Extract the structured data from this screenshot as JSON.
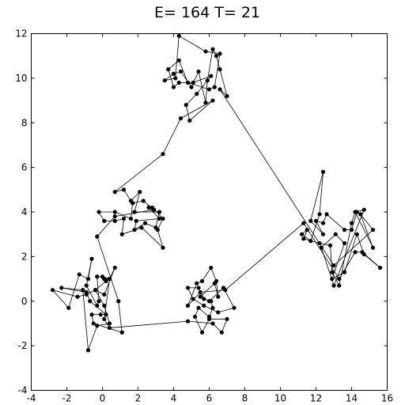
{
  "chart_data": {
    "type": "scatter",
    "title": "E= 164 T= 21",
    "xlabel": "",
    "ylabel": "",
    "xlim": [
      -4,
      16
    ],
    "ylim": [
      -4,
      12
    ],
    "xticks": [
      -4,
      -2,
      0,
      2,
      4,
      6,
      8,
      10,
      12,
      14,
      16
    ],
    "yticks": [
      -4,
      -2,
      0,
      2,
      4,
      6,
      8,
      10,
      12
    ],
    "grid": false,
    "connected": true,
    "closed": true,
    "point_color": "#000000",
    "line_color": "#000000",
    "tour": [
      [
        1.1,
        -1.4
      ],
      [
        -0.5,
        -1.0
      ],
      [
        -0.6,
        -0.6
      ],
      [
        -0.1,
        -0.6
      ],
      [
        0.2,
        -0.6
      ],
      [
        -0.7,
        0.0
      ],
      [
        -0.9,
        0.4
      ],
      [
        -2.3,
        0.6
      ],
      [
        -1.1,
        0.5
      ],
      [
        -0.8,
        -2.2
      ],
      [
        -0.3,
        -1.1
      ],
      [
        0.4,
        -1.0
      ],
      [
        0.1,
        -0.2
      ],
      [
        -0.4,
        0.5
      ],
      [
        -0.9,
        0.3
      ],
      [
        -1.4,
        0.2
      ],
      [
        -2.8,
        0.5
      ],
      [
        -1.9,
        -0.3
      ],
      [
        -1.3,
        1.2
      ],
      [
        -0.8,
        1.0
      ],
      [
        -0.6,
        1.9
      ],
      [
        -0.9,
        0.7
      ],
      [
        -0.3,
        -0.2
      ],
      [
        -0.2,
        0.0
      ],
      [
        -0.3,
        1.1
      ],
      [
        0.0,
        1.1
      ],
      [
        0.4,
        1.0
      ],
      [
        0.7,
        1.5
      ],
      [
        0.1,
        0.3
      ],
      [
        -0.4,
        0.5
      ],
      [
        0.2,
        0.9
      ],
      [
        0.1,
        1.0
      ],
      [
        0.4,
        1.0
      ],
      [
        0.1,
        -0.8
      ],
      [
        0.4,
        -1.2
      ],
      [
        4.8,
        -0.9
      ],
      [
        6.2,
        -1.0
      ],
      [
        6.7,
        -1.4
      ],
      [
        7.0,
        -0.8
      ],
      [
        6.0,
        -0.8
      ],
      [
        5.6,
        -1.4
      ],
      [
        5.2,
        -0.7
      ],
      [
        5.4,
        -0.3
      ],
      [
        6.0,
        -0.7
      ],
      [
        6.2,
        -0.3
      ],
      [
        6.1,
        0.0
      ],
      [
        5.7,
        0.1
      ],
      [
        5.4,
        0.6
      ],
      [
        4.8,
        0.6
      ],
      [
        5.1,
        0.1
      ],
      [
        5.7,
        -0.2
      ],
      [
        6.5,
        -0.5
      ],
      [
        7.4,
        -0.3
      ],
      [
        6.8,
        0.6
      ],
      [
        6.0,
        0.0
      ],
      [
        5.5,
        0.2
      ],
      [
        6.3,
        0.8
      ],
      [
        6.5,
        0.2
      ],
      [
        6.4,
        0.9
      ],
      [
        6.1,
        1.5
      ],
      [
        5.6,
        0.9
      ],
      [
        5.3,
        0.8
      ],
      [
        4.8,
        -0.2
      ],
      [
        5.5,
        0.4
      ],
      [
        6.9,
        0.5
      ],
      [
        11.3,
        3.5
      ],
      [
        13.3,
        1.0
      ],
      [
        14.2,
        2.2
      ],
      [
        14.6,
        2.2
      ],
      [
        15.6,
        1.5
      ],
      [
        14.7,
        2.1
      ],
      [
        14.3,
        3.0
      ],
      [
        13.6,
        1.3
      ],
      [
        12.9,
        1.0
      ],
      [
        13.6,
        2.6
      ],
      [
        13.1,
        3.0
      ],
      [
        12.3,
        2.4
      ],
      [
        13.0,
        0.7
      ],
      [
        14.7,
        4.1
      ],
      [
        14.3,
        4.0
      ],
      [
        14.0,
        3.2
      ],
      [
        13.6,
        3.2
      ],
      [
        12.6,
        3.9
      ],
      [
        12.4,
        3.5
      ],
      [
        12.0,
        3.6
      ],
      [
        12.4,
        3.0
      ],
      [
        11.7,
        3.6
      ],
      [
        12.4,
        5.8
      ],
      [
        12.2,
        3.9
      ],
      [
        11.7,
        2.7
      ],
      [
        11.2,
        3.0
      ],
      [
        11.5,
        3.2
      ],
      [
        11.3,
        2.8
      ],
      [
        12.2,
        2.6
      ],
      [
        12.8,
        2.5
      ],
      [
        12.9,
        1.3
      ],
      [
        13.3,
        0.7
      ],
      [
        14.0,
        3.5
      ],
      [
        14.2,
        4.0
      ],
      [
        15.2,
        2.4
      ],
      [
        14.5,
        3.9
      ],
      [
        15.2,
        3.2
      ],
      [
        13.0,
        1.6
      ],
      [
        6.6,
        9.5
      ],
      [
        7.0,
        9.2
      ],
      [
        6.6,
        10.4
      ],
      [
        6.4,
        11.0
      ],
      [
        6.2,
        11.3
      ],
      [
        5.9,
        9.9
      ],
      [
        5.8,
        8.9
      ],
      [
        5.4,
        10.3
      ],
      [
        5.0,
        9.6
      ],
      [
        4.4,
        10.3
      ],
      [
        4.0,
        10.2
      ],
      [
        3.5,
        9.9
      ],
      [
        4.1,
        10.0
      ],
      [
        4.3,
        11.9
      ],
      [
        5.8,
        11.2
      ],
      [
        6.6,
        11.1
      ],
      [
        6.3,
        9.6
      ],
      [
        6.0,
        9.5
      ],
      [
        4.8,
        9.8
      ],
      [
        4.3,
        10.8
      ],
      [
        3.7,
        10.4
      ],
      [
        4.0,
        9.6
      ],
      [
        4.3,
        9.8
      ],
      [
        5.1,
        9.8
      ],
      [
        6.1,
        10.1
      ],
      [
        5.3,
        9.3
      ],
      [
        4.7,
        8.8
      ],
      [
        4.9,
        8.1
      ],
      [
        6.2,
        9.0
      ],
      [
        4.4,
        8.2
      ],
      [
        3.4,
        6.6
      ],
      [
        0.7,
        4.9
      ],
      [
        1.2,
        5.0
      ],
      [
        1.6,
        4.5
      ],
      [
        2.1,
        4.9
      ],
      [
        1.8,
        4.0
      ],
      [
        3.2,
        4.0
      ],
      [
        3.0,
        3.3
      ],
      [
        2.4,
        3.5
      ],
      [
        1.8,
        3.2
      ],
      [
        1.9,
        3.6
      ],
      [
        3.2,
        3.7
      ],
      [
        2.6,
        4.2
      ],
      [
        2.8,
        4.2
      ],
      [
        3.4,
        3.7
      ],
      [
        3.1,
        3.2
      ],
      [
        3.4,
        2.4
      ],
      [
        2.2,
        3.3
      ],
      [
        1.1,
        3.0
      ],
      [
        1.2,
        3.7
      ],
      [
        0.7,
        3.6
      ],
      [
        0.1,
        3.6
      ],
      [
        -0.2,
        4.0
      ],
      [
        0.7,
        4.0
      ],
      [
        1.6,
        3.7
      ],
      [
        1.7,
        4.4
      ],
      [
        2.3,
        4.5
      ],
      [
        2.9,
        4.1
      ],
      [
        0.7,
        3.8
      ],
      [
        -0.3,
        2.9
      ],
      [
        0.9,
        0.0
      ],
      [
        1.1,
        -1.4
      ]
    ]
  }
}
